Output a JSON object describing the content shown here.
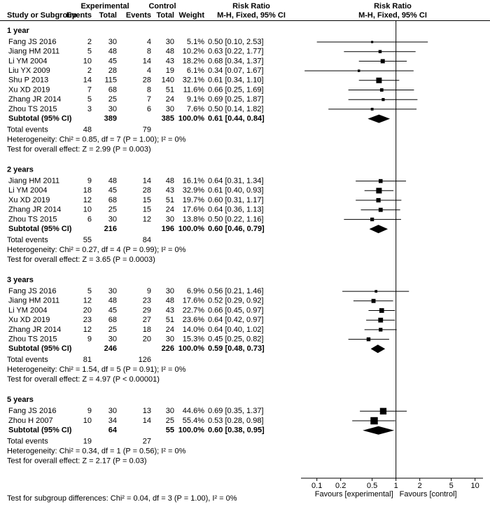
{
  "chart_data": {
    "type": "forest",
    "headers": {
      "experimental": "Experimental",
      "control": "Control",
      "risk_ratio": "Risk Ratio",
      "plot_title": "Risk Ratio",
      "study": "Study or Subgroup",
      "exp_events": "Events",
      "exp_total": "Total",
      "ctrl_events": "Events",
      "ctrl_total": "Total",
      "weight": "Weight",
      "method": "M-H, Fixed, 95% CI",
      "plot_method": "M-H, Fixed, 95% CI"
    },
    "groups": [
      {
        "title": "1 year",
        "studies": [
          {
            "name": "Fang JS 2016",
            "exp_events": 2,
            "exp_total": 30,
            "ctrl_events": 4,
            "ctrl_total": 30,
            "weight": 5.1,
            "weight_label": "5.1%",
            "rr": 0.5,
            "ci_low": 0.1,
            "ci_high": 2.53,
            "ci_label": "0.50 [0.10, 2.53]"
          },
          {
            "name": "Jiang HM 2011",
            "exp_events": 5,
            "exp_total": 48,
            "ctrl_events": 8,
            "ctrl_total": 48,
            "weight": 10.2,
            "weight_label": "10.2%",
            "rr": 0.63,
            "ci_low": 0.22,
            "ci_high": 1.77,
            "ci_label": "0.63 [0.22, 1.77]"
          },
          {
            "name": "Li YM 2004",
            "exp_events": 10,
            "exp_total": 45,
            "ctrl_events": 14,
            "ctrl_total": 43,
            "weight": 18.2,
            "weight_label": "18.2%",
            "rr": 0.68,
            "ci_low": 0.34,
            "ci_high": 1.37,
            "ci_label": "0.68 [0.34, 1.37]"
          },
          {
            "name": "Liu YX 2009",
            "exp_events": 2,
            "exp_total": 28,
            "ctrl_events": 4,
            "ctrl_total": 19,
            "weight": 6.1,
            "weight_label": "6.1%",
            "rr": 0.34,
            "ci_low": 0.07,
            "ci_high": 1.67,
            "ci_label": "0.34 [0.07, 1.67]"
          },
          {
            "name": "Shu P 2013",
            "exp_events": 14,
            "exp_total": 115,
            "ctrl_events": 28,
            "ctrl_total": 140,
            "weight": 32.1,
            "weight_label": "32.1%",
            "rr": 0.61,
            "ci_low": 0.34,
            "ci_high": 1.1,
            "ci_label": "0.61 [0.34, 1.10]"
          },
          {
            "name": "Xu XD 2019",
            "exp_events": 7,
            "exp_total": 68,
            "ctrl_events": 8,
            "ctrl_total": 51,
            "weight": 11.6,
            "weight_label": "11.6%",
            "rr": 0.66,
            "ci_low": 0.25,
            "ci_high": 1.69,
            "ci_label": "0.66 [0.25, 1.69]"
          },
          {
            "name": "Zhang JR 2014",
            "exp_events": 5,
            "exp_total": 25,
            "ctrl_events": 7,
            "ctrl_total": 24,
            "weight": 9.1,
            "weight_label": "9.1%",
            "rr": 0.69,
            "ci_low": 0.25,
            "ci_high": 1.87,
            "ci_label": "0.69 [0.25, 1.87]"
          },
          {
            "name": "Zhou TS 2015",
            "exp_events": 3,
            "exp_total": 30,
            "ctrl_events": 6,
            "ctrl_total": 30,
            "weight": 7.6,
            "weight_label": "7.6%",
            "rr": 0.5,
            "ci_low": 0.14,
            "ci_high": 1.82,
            "ci_label": "0.50 [0.14, 1.82]"
          }
        ],
        "subtotal": {
          "label": "Subtotal (95% CI)",
          "exp_total": 389,
          "ctrl_total": 385,
          "weight_label": "100.0%",
          "rr": 0.61,
          "ci_low": 0.44,
          "ci_high": 0.84,
          "ci_label": "0.61 [0.44, 0.84]"
        },
        "total_events": {
          "label": "Total events",
          "exp": 48,
          "ctrl": 79
        },
        "heterogeneity": "Heterogeneity: Chi² = 0.85, df = 7 (P = 1.00); I² = 0%",
        "overall_effect": "Test for overall effect: Z = 2.99 (P = 0.003)"
      },
      {
        "title": "2 years",
        "studies": [
          {
            "name": "Jiang HM 2011",
            "exp_events": 9,
            "exp_total": 48,
            "ctrl_events": 14,
            "ctrl_total": 48,
            "weight": 16.1,
            "weight_label": "16.1%",
            "rr": 0.64,
            "ci_low": 0.31,
            "ci_high": 1.34,
            "ci_label": "0.64 [0.31, 1.34]"
          },
          {
            "name": "Li YM 2004",
            "exp_events": 18,
            "exp_total": 45,
            "ctrl_events": 28,
            "ctrl_total": 43,
            "weight": 32.9,
            "weight_label": "32.9%",
            "rr": 0.61,
            "ci_low": 0.4,
            "ci_high": 0.93,
            "ci_label": "0.61 [0.40, 0.93]"
          },
          {
            "name": "Xu XD 2019",
            "exp_events": 12,
            "exp_total": 68,
            "ctrl_events": 15,
            "ctrl_total": 51,
            "weight": 19.7,
            "weight_label": "19.7%",
            "rr": 0.6,
            "ci_low": 0.31,
            "ci_high": 1.17,
            "ci_label": "0.60 [0.31, 1.17]"
          },
          {
            "name": "Zhang JR 2014",
            "exp_events": 10,
            "exp_total": 25,
            "ctrl_events": 15,
            "ctrl_total": 24,
            "weight": 17.6,
            "weight_label": "17.6%",
            "rr": 0.64,
            "ci_low": 0.36,
            "ci_high": 1.13,
            "ci_label": "0.64 [0.36, 1.13]"
          },
          {
            "name": "Zhou TS 2015",
            "exp_events": 6,
            "exp_total": 30,
            "ctrl_events": 12,
            "ctrl_total": 30,
            "weight": 13.8,
            "weight_label": "13.8%",
            "rr": 0.5,
            "ci_low": 0.22,
            "ci_high": 1.16,
            "ci_label": "0.50 [0.22, 1.16]"
          }
        ],
        "subtotal": {
          "label": "Subtotal (95% CI)",
          "exp_total": 216,
          "ctrl_total": 196,
          "weight_label": "100.0%",
          "rr": 0.6,
          "ci_low": 0.46,
          "ci_high": 0.79,
          "ci_label": "0.60 [0.46, 0.79]"
        },
        "total_events": {
          "label": "Total events",
          "exp": 55,
          "ctrl": 84
        },
        "heterogeneity": "Heterogeneity: Chi² = 0.27, df = 4 (P = 0.99); I² = 0%",
        "overall_effect": "Test for overall effect: Z = 3.65 (P = 0.0003)"
      },
      {
        "title": "3 years",
        "studies": [
          {
            "name": "Fang JS 2016",
            "exp_events": 5,
            "exp_total": 30,
            "ctrl_events": 9,
            "ctrl_total": 30,
            "weight": 6.9,
            "weight_label": "6.9%",
            "rr": 0.56,
            "ci_low": 0.21,
            "ci_high": 1.46,
            "ci_label": "0.56 [0.21, 1.46]"
          },
          {
            "name": "Jiang HM 2011",
            "exp_events": 12,
            "exp_total": 48,
            "ctrl_events": 23,
            "ctrl_total": 48,
            "weight": 17.6,
            "weight_label": "17.6%",
            "rr": 0.52,
            "ci_low": 0.29,
            "ci_high": 0.92,
            "ci_label": "0.52 [0.29, 0.92]"
          },
          {
            "name": "Li YM 2004",
            "exp_events": 20,
            "exp_total": 45,
            "ctrl_events": 29,
            "ctrl_total": 43,
            "weight": 22.7,
            "weight_label": "22.7%",
            "rr": 0.66,
            "ci_low": 0.45,
            "ci_high": 0.97,
            "ci_label": "0.66 [0.45, 0.97]"
          },
          {
            "name": "Xu XD 2019",
            "exp_events": 23,
            "exp_total": 68,
            "ctrl_events": 27,
            "ctrl_total": 51,
            "weight": 23.6,
            "weight_label": "23.6%",
            "rr": 0.64,
            "ci_low": 0.42,
            "ci_high": 0.97,
            "ci_label": "0.64 [0.42, 0.97]"
          },
          {
            "name": "Zhang JR 2014",
            "exp_events": 12,
            "exp_total": 25,
            "ctrl_events": 18,
            "ctrl_total": 24,
            "weight": 14.0,
            "weight_label": "14.0%",
            "rr": 0.64,
            "ci_low": 0.4,
            "ci_high": 1.02,
            "ci_label": "0.64 [0.40, 1.02]"
          },
          {
            "name": "Zhou TS 2015",
            "exp_events": 9,
            "exp_total": 30,
            "ctrl_events": 20,
            "ctrl_total": 30,
            "weight": 15.3,
            "weight_label": "15.3%",
            "rr": 0.45,
            "ci_low": 0.25,
            "ci_high": 0.82,
            "ci_label": "0.45 [0.25, 0.82]"
          }
        ],
        "subtotal": {
          "label": "Subtotal (95% CI)",
          "exp_total": 246,
          "ctrl_total": 226,
          "weight_label": "100.0%",
          "rr": 0.59,
          "ci_low": 0.48,
          "ci_high": 0.73,
          "ci_label": "0.59 [0.48, 0.73]"
        },
        "total_events": {
          "label": "Total events",
          "exp": 81,
          "ctrl": 126
        },
        "heterogeneity": "Heterogeneity: Chi² = 1.54, df = 5 (P = 0.91); I² = 0%",
        "overall_effect": "Test for overall effect: Z = 4.97 (P < 0.00001)"
      },
      {
        "title": "5 years",
        "studies": [
          {
            "name": "Fang JS 2016",
            "exp_events": 9,
            "exp_total": 30,
            "ctrl_events": 13,
            "ctrl_total": 30,
            "weight": 44.6,
            "weight_label": "44.6%",
            "rr": 0.69,
            "ci_low": 0.35,
            "ci_high": 1.37,
            "ci_label": "0.69 [0.35, 1.37]"
          },
          {
            "name": "Zhou H 2007",
            "exp_events": 10,
            "exp_total": 34,
            "ctrl_events": 14,
            "ctrl_total": 25,
            "weight": 55.4,
            "weight_label": "55.4%",
            "rr": 0.53,
            "ci_low": 0.28,
            "ci_high": 0.98,
            "ci_label": "0.53 [0.28, 0.98]"
          }
        ],
        "subtotal": {
          "label": "Subtotal (95% CI)",
          "exp_total": 64,
          "ctrl_total": 55,
          "weight_label": "100.0%",
          "rr": 0.6,
          "ci_low": 0.38,
          "ci_high": 0.95,
          "ci_label": "0.60 [0.38, 0.95]"
        },
        "total_events": {
          "label": "Total events",
          "exp": 19,
          "ctrl": 27
        },
        "heterogeneity": "Heterogeneity: Chi² = 0.34, df = 1 (P = 0.56); I² = 0%",
        "overall_effect": "Test for overall effect: Z = 2.17 (P = 0.03)"
      }
    ],
    "xscale": "log",
    "xlim": [
      0.063,
      12.6
    ],
    "xticks": [
      0.1,
      0.2,
      0.5,
      1,
      2,
      5,
      10
    ],
    "favours_left": "Favours [experimental]",
    "favours_right": "Favours [control]",
    "subgroup_test": "Test for subgroup differences: Chi² = 0.04, df = 3 (P = 1.00), I² = 0%"
  }
}
